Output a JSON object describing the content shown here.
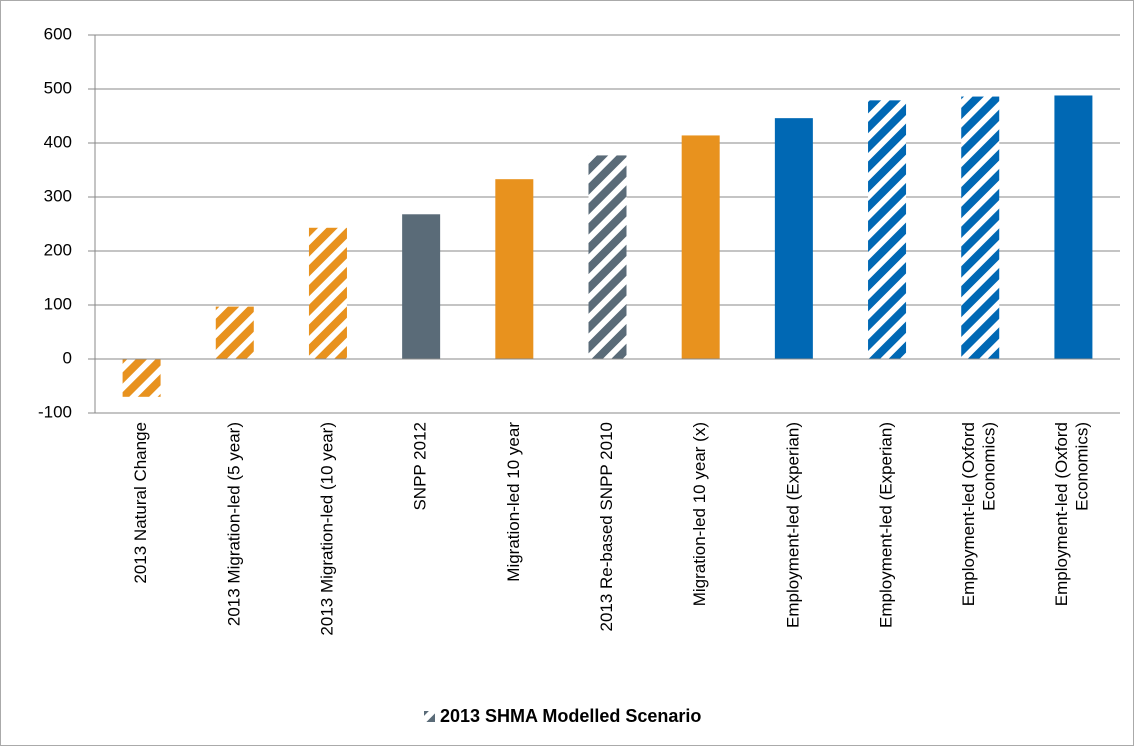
{
  "chart_data": {
    "type": "bar",
    "categories": [
      "2013 Natural Change",
      "2013 Migration-led (5 year)",
      "2013 Migration-led (10 year)",
      "SNPP 2012",
      "Migration-led 10 year",
      "2013 Re-based SNPP 2010",
      "Migration-led 10 year (x)",
      "Employment-led (Experian)",
      "Employment-led (Experian)",
      "Employment-led (Oxford Economics)",
      "Employment-led (Oxford Economics)"
    ],
    "series": [
      {
        "name": "2013 SHMA Modelled Scenario",
        "color": "#5a6b78",
        "values": [
          -70,
          97,
          243,
          268,
          333,
          377,
          414,
          446,
          479,
          486,
          488
        ],
        "colors": [
          "#e8921e",
          "#e8921e",
          "#e8921e",
          "#5a6b78",
          "#e8921e",
          "#5a6b78",
          "#e8921e",
          "#0068b4",
          "#0068b4",
          "#0068b4",
          "#0068b4"
        ],
        "hatched": [
          true,
          true,
          true,
          false,
          false,
          true,
          false,
          false,
          true,
          true,
          false
        ]
      }
    ],
    "ylim": [
      -100,
      600
    ],
    "yticks": [
      -100,
      0,
      100,
      200,
      300,
      400,
      500,
      600
    ],
    "grid": true
  }
}
